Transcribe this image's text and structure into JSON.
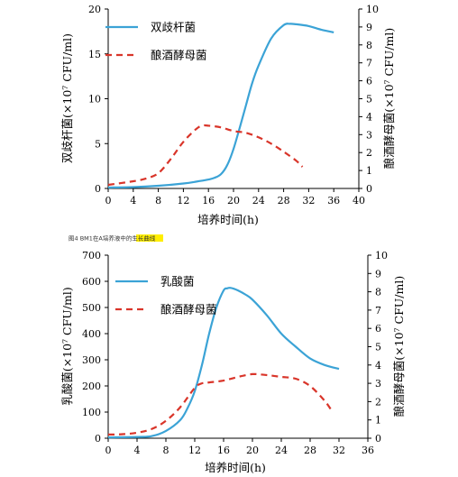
{
  "caption": {
    "prefix": "图4 BM1在A培养液中的",
    "highlight": "生长曲线",
    "highlight_color": "#ffee00"
  },
  "colors": {
    "series1": "#3ba3d6",
    "series2": "#d9352a"
  },
  "chart_data": [
    {
      "type": "line",
      "xlabel": "培养时间(h)",
      "ylabel_left": "双歧杆菌(×10⁷ CFU/ml)",
      "ylabel_right": "酿酒酵母菌(×10⁷ CFU/ml)",
      "xlim": [
        0,
        40
      ],
      "xticks": [
        0,
        4,
        8,
        12,
        16,
        20,
        24,
        28,
        32,
        36,
        40
      ],
      "ylim_left": [
        0,
        20
      ],
      "yticks_left": [
        0,
        5,
        10,
        15,
        20
      ],
      "ylim_right": [
        0,
        10
      ],
      "yticks_right": [
        0,
        1,
        2,
        3,
        4,
        5,
        6,
        7,
        8,
        9,
        10
      ],
      "legend_position": "top-left",
      "series": [
        {
          "name": "双歧杆菌",
          "axis": "left",
          "style": "solid",
          "x": [
            0,
            4,
            8,
            12,
            14,
            16,
            17,
            18,
            19,
            20,
            21,
            22,
            23,
            24,
            26,
            28,
            29,
            30,
            32,
            34,
            36
          ],
          "y": [
            0.1,
            0.15,
            0.3,
            0.55,
            0.75,
            1.0,
            1.2,
            1.6,
            2.6,
            4.4,
            6.8,
            9.3,
            11.8,
            13.7,
            16.7,
            18.2,
            18.35,
            18.3,
            18.1,
            17.7,
            17.4
          ]
        },
        {
          "name": "酿酒酵母菌",
          "axis": "right",
          "style": "dashed",
          "x": [
            0,
            4,
            6,
            8,
            10,
            12,
            14,
            15,
            16,
            18,
            20,
            22,
            24,
            26,
            28,
            30,
            31
          ],
          "y": [
            0.2,
            0.4,
            0.55,
            0.85,
            1.65,
            2.6,
            3.3,
            3.5,
            3.5,
            3.4,
            3.2,
            3.1,
            2.85,
            2.5,
            2.05,
            1.55,
            1.2
          ]
        }
      ]
    },
    {
      "type": "line",
      "xlabel": "培养时间(h)",
      "ylabel_left": "乳酸菌(×10⁷ CFU/ml)",
      "ylabel_right": "酿酒酵母菌(×10⁷ CFU/ml)",
      "xlim": [
        0,
        36
      ],
      "xticks": [
        0,
        4,
        8,
        12,
        16,
        20,
        24,
        28,
        32,
        36
      ],
      "ylim_left": [
        0,
        700
      ],
      "yticks_left": [
        0,
        100,
        200,
        300,
        400,
        500,
        600,
        700
      ],
      "ylim_right": [
        0,
        10
      ],
      "yticks_right": [
        0,
        1,
        2,
        3,
        4,
        5,
        6,
        7,
        8,
        9,
        10
      ],
      "legend_position": "top-left",
      "series": [
        {
          "name": "乳酸菌",
          "axis": "left",
          "style": "solid",
          "x": [
            0,
            4,
            6,
            8,
            10,
            11,
            12,
            13,
            14,
            15,
            16,
            16.5,
            17,
            18,
            19,
            20,
            22,
            24,
            26,
            28,
            30,
            32
          ],
          "y": [
            3,
            5,
            8,
            28,
            70,
            115,
            180,
            280,
            400,
            500,
            565,
            573,
            575,
            565,
            550,
            530,
            470,
            400,
            350,
            305,
            280,
            265
          ]
        },
        {
          "name": "酿酒酵母菌",
          "axis": "right",
          "style": "dashed",
          "x": [
            0,
            2,
            4,
            6,
            8,
            10,
            12,
            13,
            14,
            16,
            18,
            20,
            22,
            24,
            26,
            28,
            30,
            31
          ],
          "y": [
            0.2,
            0.22,
            0.3,
            0.5,
            0.95,
            1.7,
            2.75,
            3.0,
            3.05,
            3.15,
            3.35,
            3.5,
            3.45,
            3.35,
            3.25,
            2.85,
            2.05,
            1.5
          ]
        }
      ]
    }
  ]
}
